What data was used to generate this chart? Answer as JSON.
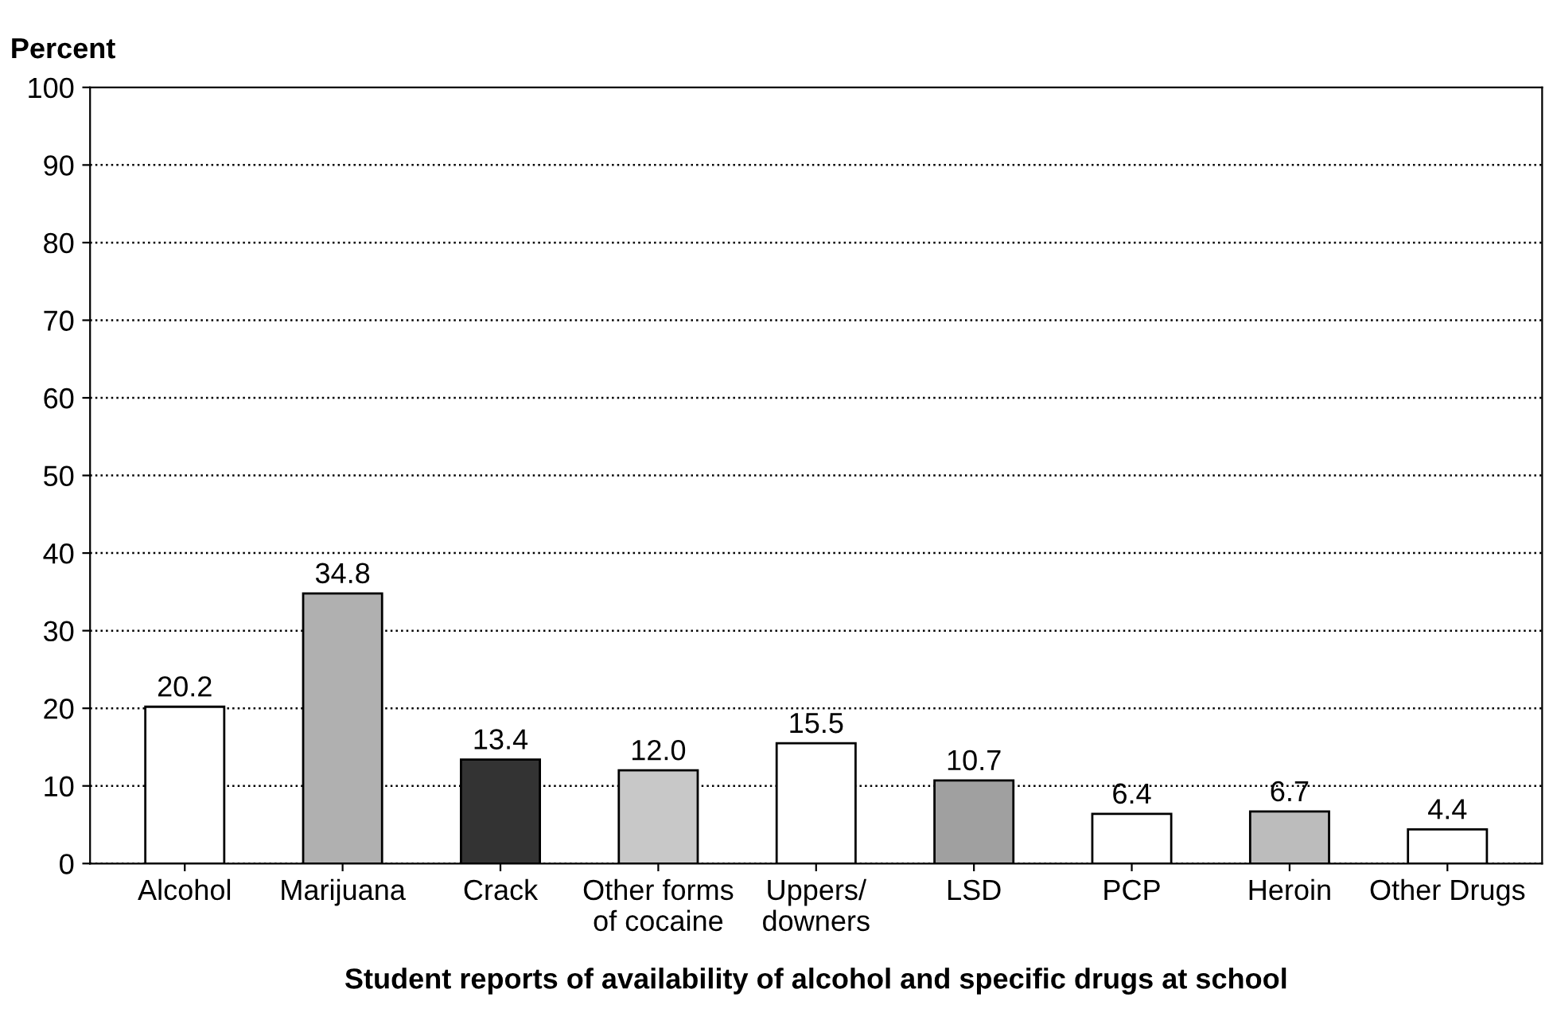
{
  "chart_data": {
    "type": "bar",
    "xlabel": "Student reports of availability of alcohol and specific drugs at school",
    "ylabel": "Percent",
    "categories": [
      "Alcohol",
      "Marijuana",
      "Crack",
      "Other forms\nof cocaine",
      "Uppers/\ndowners",
      "LSD",
      "PCP",
      "Heroin",
      "Other Drugs"
    ],
    "values": [
      20.2,
      34.8,
      13.4,
      12.0,
      15.5,
      10.7,
      6.4,
      6.7,
      4.4
    ],
    "value_labels": [
      "20.2",
      "34.8",
      "13.4",
      "12.0",
      "15.5",
      "10.7",
      "6.4",
      "6.7",
      "4.4"
    ],
    "colors": [
      "#ffffff",
      "#b0b0b0",
      "#333333",
      "#c8c8c8",
      "#ffffff",
      "#a0a0a0",
      "#ffffff",
      "#bcbcbc",
      "#ffffff"
    ],
    "ylim": [
      0,
      100
    ],
    "yticks": [
      0,
      10,
      20,
      30,
      40,
      50,
      60,
      70,
      80,
      90,
      100
    ],
    "grid": "y"
  }
}
